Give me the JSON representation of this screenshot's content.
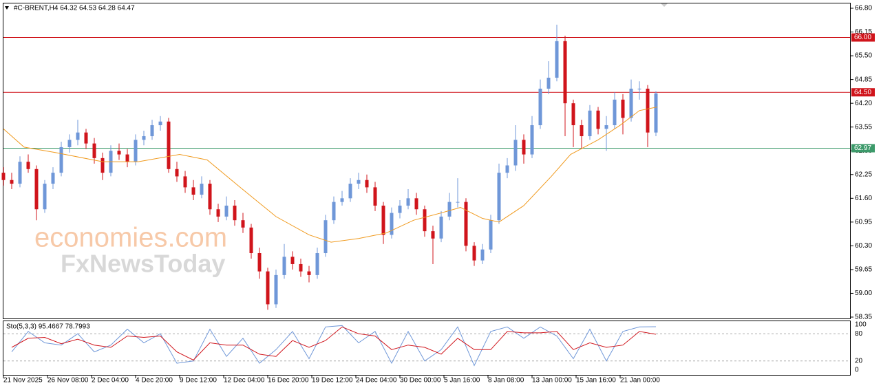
{
  "chart_data": [
    {
      "type": "candlestick",
      "title": "#C-BRENT,H4  64.32 64.53 64.28 64.47",
      "up_color": "#6f97d8",
      "down_color": "#d0141b",
      "ma_color": "#f09a1e",
      "xlim": [
        0,
        307.5
      ],
      "ylim": [
        58.35,
        66.8
      ],
      "yticks": [
        {
          "value": 66.8,
          "label": "66.80"
        },
        66.15,
        {
          "value": 65.5,
          "label": "65.50"
        },
        64.85,
        {
          "value": 64.2,
          "label": "64.20"
        },
        63.55,
        {
          "value": 62.9,
          "label": "62.90"
        },
        62.25,
        {
          "value": 61.6,
          "label": "61.60"
        },
        60.95,
        {
          "value": 60.3,
          "label": "60.30"
        },
        59.65,
        {
          "value": 59.0,
          "label": "59.00"
        },
        58.35
      ],
      "xticks": [
        {
          "value": 0,
          "label": "21 Nov 2025"
        },
        {
          "value": 16,
          "label": "26 Nov 08:00"
        },
        {
          "value": 32,
          "label": "2 Dec 04:00"
        },
        {
          "value": 48,
          "label": "4 Dec 20:00"
        },
        {
          "value": 64,
          "label": "9 Dec 12:00"
        },
        {
          "value": 80,
          "label": "12 Dec 04:00"
        },
        {
          "value": 96,
          "label": "16 Dec 20:00"
        },
        {
          "value": 112,
          "label": "19 Dec 12:00"
        },
        {
          "value": 128,
          "label": "24 Dec 04:00"
        },
        {
          "value": 144,
          "label": "30 Dec 00:00"
        },
        {
          "value": 160,
          "label": "5 Jan 16:00"
        },
        {
          "value": 176,
          "label": "8 Jan 08:00"
        },
        {
          "value": 192,
          "label": "13 Jan 00:00"
        },
        {
          "value": 208,
          "label": "15 Jan 16:00"
        },
        {
          "value": 224,
          "label": "21 Jan 00:00"
        }
      ],
      "levels": [
        {
          "value": 66.0,
          "label": "66.00",
          "color": "#d0141b"
        },
        {
          "value": 64.5,
          "label": "64.50",
          "color": "#d0141b"
        },
        {
          "value": 62.97,
          "label": "62.97",
          "color": "#3c9a6a"
        }
      ],
      "x": [
        0,
        3,
        6,
        9,
        12,
        15,
        18,
        21,
        24,
        27,
        30,
        33,
        36,
        39,
        42,
        45,
        48,
        51,
        54,
        57,
        60,
        63,
        66,
        69,
        72,
        75,
        78,
        81,
        84,
        87,
        90,
        93,
        96,
        99,
        102,
        105,
        108,
        111,
        114,
        117,
        120,
        123,
        126,
        129,
        132,
        135,
        138,
        141,
        144,
        147,
        150,
        153,
        156,
        159,
        162,
        165,
        168,
        171,
        174,
        177,
        180,
        183,
        186,
        189,
        192,
        195,
        198,
        201,
        204,
        207,
        210,
        213,
        216,
        219,
        222,
        225,
        228,
        231,
        234,
        237
      ],
      "candles": [
        [
          62.3,
          62.45,
          61.95,
          62.1
        ],
        [
          62.1,
          62.3,
          61.85,
          62.0
        ],
        [
          62.0,
          62.75,
          61.9,
          62.6
        ],
        [
          62.6,
          62.8,
          62.3,
          62.4
        ],
        [
          62.4,
          62.5,
          61.0,
          61.3
        ],
        [
          61.3,
          62.1,
          61.2,
          62.0
        ],
        [
          62.0,
          62.45,
          61.85,
          62.3
        ],
        [
          62.3,
          63.15,
          62.2,
          63.0
        ],
        [
          63.0,
          63.35,
          62.85,
          63.2
        ],
        [
          63.2,
          63.75,
          63.05,
          63.4
        ],
        [
          63.4,
          63.5,
          62.95,
          63.1
        ],
        [
          63.1,
          63.25,
          62.55,
          62.7
        ],
        [
          62.7,
          62.85,
          62.1,
          62.3
        ],
        [
          62.3,
          63.05,
          62.2,
          62.9
        ],
        [
          62.9,
          63.1,
          62.65,
          62.8
        ],
        [
          62.8,
          62.95,
          62.45,
          62.6
        ],
        [
          62.6,
          63.35,
          62.5,
          63.2
        ],
        [
          63.2,
          63.45,
          63.05,
          63.3
        ],
        [
          63.3,
          63.75,
          63.2,
          63.6
        ],
        [
          63.6,
          63.85,
          63.45,
          63.7
        ],
        [
          63.7,
          63.8,
          62.3,
          62.4
        ],
        [
          62.4,
          62.6,
          62.05,
          62.2
        ],
        [
          62.2,
          62.35,
          61.75,
          61.9
        ],
        [
          61.9,
          62.1,
          61.55,
          61.7
        ],
        [
          61.7,
          62.2,
          61.6,
          62.0
        ],
        [
          62.0,
          62.1,
          61.15,
          61.3
        ],
        [
          61.3,
          61.45,
          60.95,
          61.1
        ],
        [
          61.1,
          61.65,
          61.0,
          61.4
        ],
        [
          61.4,
          61.55,
          60.85,
          61.0
        ],
        [
          61.0,
          61.2,
          60.65,
          60.8
        ],
        [
          60.8,
          60.9,
          59.95,
          60.1
        ],
        [
          60.1,
          60.25,
          59.4,
          59.6
        ],
        [
          59.6,
          59.7,
          58.55,
          58.7
        ],
        [
          58.7,
          59.65,
          58.6,
          59.5
        ],
        [
          59.5,
          60.35,
          59.4,
          60.0
        ],
        [
          60.0,
          60.15,
          59.65,
          59.8
        ],
        [
          59.8,
          59.95,
          59.45,
          59.6
        ],
        [
          59.6,
          59.75,
          59.3,
          59.5
        ],
        [
          59.5,
          60.25,
          59.4,
          60.1
        ],
        [
          60.1,
          61.15,
          60.0,
          61.0
        ],
        [
          61.0,
          61.65,
          60.9,
          61.5
        ],
        [
          61.5,
          61.8,
          61.4,
          61.6
        ],
        [
          61.6,
          62.15,
          61.5,
          62.0
        ],
        [
          62.0,
          62.3,
          61.85,
          62.1
        ],
        [
          62.1,
          62.25,
          61.75,
          61.9
        ],
        [
          61.9,
          62.05,
          61.25,
          61.4
        ],
        [
          61.4,
          61.5,
          60.35,
          60.6
        ],
        [
          60.6,
          61.35,
          60.5,
          61.2
        ],
        [
          61.2,
          61.55,
          61.05,
          61.4
        ],
        [
          61.4,
          61.85,
          61.3,
          61.6
        ],
        [
          61.6,
          61.75,
          61.15,
          61.3
        ],
        [
          61.3,
          61.4,
          60.55,
          60.7
        ],
        [
          60.7,
          60.85,
          59.8,
          60.5
        ],
        [
          60.5,
          61.25,
          60.4,
          61.1
        ],
        [
          61.1,
          61.75,
          61.0,
          61.5
        ],
        [
          61.5,
          62.15,
          61.35,
          61.5
        ],
        [
          61.5,
          61.6,
          60.15,
          60.3
        ],
        [
          60.3,
          60.4,
          59.75,
          59.9
        ],
        [
          59.9,
          60.35,
          59.8,
          60.2
        ],
        [
          60.2,
          61.15,
          60.1,
          61.0
        ],
        [
          61.0,
          62.55,
          60.9,
          62.3
        ],
        [
          62.3,
          62.7,
          62.15,
          62.5
        ],
        [
          62.5,
          63.6,
          62.35,
          63.2
        ],
        [
          63.2,
          63.35,
          62.55,
          62.8
        ],
        [
          62.8,
          63.85,
          62.7,
          63.6
        ],
        [
          63.6,
          64.85,
          63.5,
          64.6
        ],
        [
          64.6,
          65.35,
          64.45,
          64.9
        ],
        [
          64.9,
          66.35,
          64.8,
          65.9
        ],
        [
          65.9,
          66.05,
          63.3,
          64.2
        ],
        [
          64.2,
          64.3,
          63.0,
          63.6
        ],
        [
          63.6,
          63.75,
          62.95,
          63.3
        ],
        [
          63.3,
          64.15,
          63.2,
          64.0
        ],
        [
          64.0,
          64.1,
          63.35,
          63.5
        ],
        [
          63.5,
          63.85,
          62.9,
          63.6
        ],
        [
          63.6,
          64.5,
          63.5,
          64.3
        ],
        [
          64.3,
          64.45,
          63.35,
          63.8
        ],
        [
          63.8,
          64.85,
          63.7,
          64.6
        ],
        [
          64.6,
          64.8,
          64.3,
          64.6
        ],
        [
          64.6,
          64.7,
          63.0,
          63.4
        ],
        [
          63.4,
          64.53,
          63.3,
          64.47
        ]
      ],
      "ma": {
        "x": [
          0,
          7.5,
          19,
          36,
          49,
          64,
          74,
          86,
          99,
          111,
          119,
          129,
          139,
          149,
          159,
          166,
          174,
          180,
          189,
          199,
          206,
          216,
          224,
          231,
          237.5
        ],
        "values": [
          63.5,
          63.0,
          62.85,
          62.6,
          62.6,
          62.8,
          62.65,
          61.9,
          61.1,
          60.6,
          60.4,
          60.5,
          60.65,
          61.0,
          61.2,
          61.35,
          61.05,
          60.95,
          61.4,
          62.2,
          62.8,
          63.2,
          63.6,
          64.0,
          64.1
        ]
      }
    },
    {
      "type": "line",
      "title": "Sto(5,3,3) 95.4667 78.7993",
      "xlim": [
        0,
        307.5
      ],
      "ylim": [
        0,
        100
      ],
      "yticks": [
        100,
        80,
        20,
        0
      ],
      "levels": [
        80,
        20
      ],
      "x": [
        3,
        9,
        15,
        21,
        27,
        33,
        39,
        45,
        51,
        57,
        63,
        69,
        75,
        81,
        87,
        93,
        99,
        105,
        111,
        117,
        123,
        129,
        135,
        141,
        147,
        153,
        159,
        165,
        171,
        177,
        183,
        189,
        195,
        201,
        207,
        213,
        219,
        225,
        231,
        237
      ],
      "series": [
        {
          "color": "#6f97d8",
          "values": [
            40,
            85,
            60,
            55,
            80,
            40,
            55,
            90,
            60,
            80,
            15,
            20,
            90,
            30,
            70,
            15,
            45,
            85,
            25,
            95,
            98,
            60,
            85,
            15,
            85,
            20,
            45,
            95,
            10,
            85,
            95,
            70,
            95,
            75,
            25,
            90,
            20,
            85,
            95,
            95.4667
          ]
        },
        {
          "color": "#d0141b",
          "values": [
            50,
            70,
            72,
            58,
            68,
            55,
            50,
            75,
            72,
            75,
            40,
            22,
            60,
            55,
            55,
            35,
            30,
            65,
            50,
            65,
            95,
            80,
            75,
            45,
            55,
            50,
            35,
            70,
            45,
            45,
            85,
            82,
            82,
            85,
            45,
            60,
            50,
            55,
            85,
            78.7993
          ]
        }
      ]
    }
  ],
  "watermark": {
    "line1": "economies.com",
    "line2": "FxNewsToday"
  }
}
